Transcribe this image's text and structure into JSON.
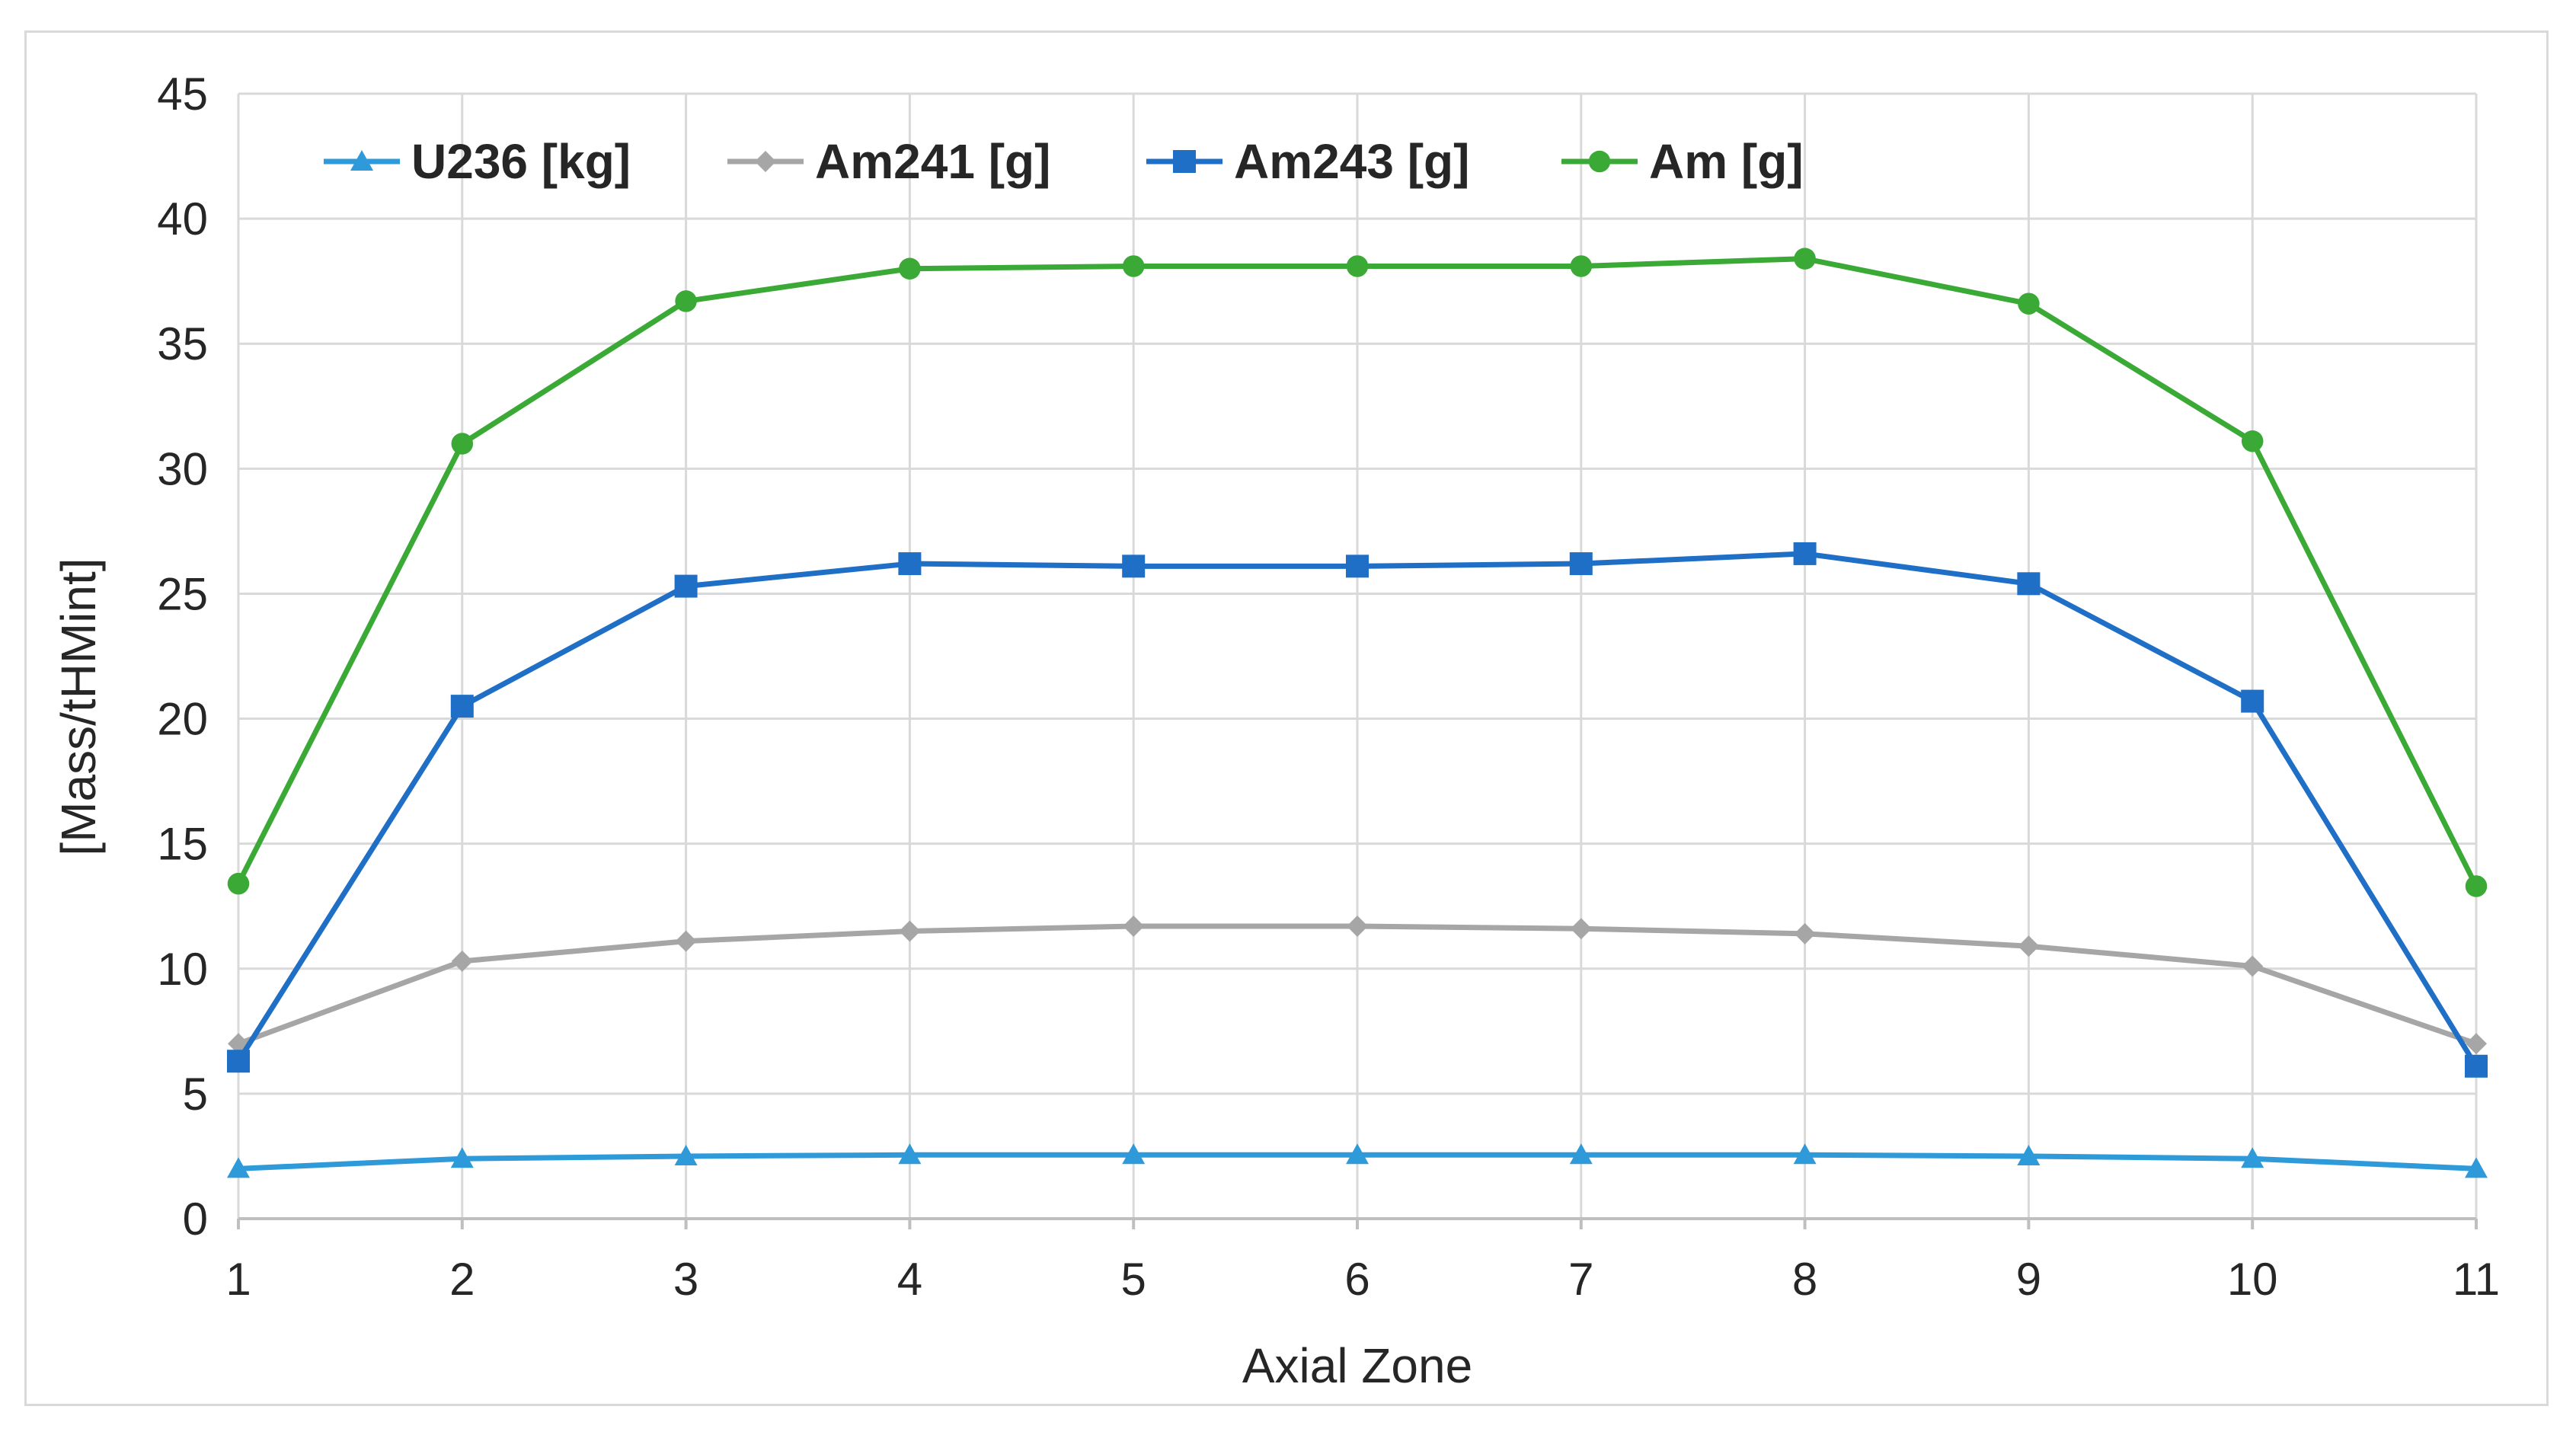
{
  "chart_data": {
    "type": "line",
    "title": "",
    "xlabel": "Axial Zone",
    "ylabel": "[Mass/tHMint]",
    "x": [
      1,
      2,
      3,
      4,
      5,
      6,
      7,
      8,
      9,
      10,
      11
    ],
    "xticks": [
      "1",
      "2",
      "3",
      "4",
      "5",
      "6",
      "7",
      "8",
      "9",
      "10",
      "11"
    ],
    "ylim": [
      0,
      45
    ],
    "yticks": [
      "0",
      "5",
      "10",
      "15",
      "20",
      "25",
      "30",
      "35",
      "40",
      "45"
    ],
    "ytick_values": [
      0,
      5,
      10,
      15,
      20,
      25,
      30,
      35,
      40,
      45
    ],
    "grid": true,
    "legend_position": "top-left",
    "series": [
      {
        "name": "U236 [kg]",
        "color": "#2e9ad9",
        "marker": "triangle",
        "values": [
          2.0,
          2.4,
          2.5,
          2.55,
          2.55,
          2.55,
          2.55,
          2.55,
          2.5,
          2.4,
          2.0
        ]
      },
      {
        "name": "Am241 [g]",
        "color": "#a6a6a6",
        "marker": "diamond",
        "values": [
          7.0,
          10.3,
          11.1,
          11.5,
          11.7,
          11.7,
          11.6,
          11.4,
          10.9,
          10.1,
          7.0
        ]
      },
      {
        "name": "Am243 [g]",
        "color": "#1f6fc6",
        "marker": "square",
        "values": [
          6.3,
          20.5,
          25.3,
          26.2,
          26.1,
          26.1,
          26.2,
          26.6,
          25.4,
          20.7,
          6.1
        ]
      },
      {
        "name": "Am [g]",
        "color": "#3aa935",
        "marker": "circle",
        "values": [
          13.4,
          31.0,
          36.7,
          38.0,
          38.1,
          38.1,
          38.1,
          38.4,
          36.6,
          31.1,
          13.3
        ]
      }
    ]
  }
}
